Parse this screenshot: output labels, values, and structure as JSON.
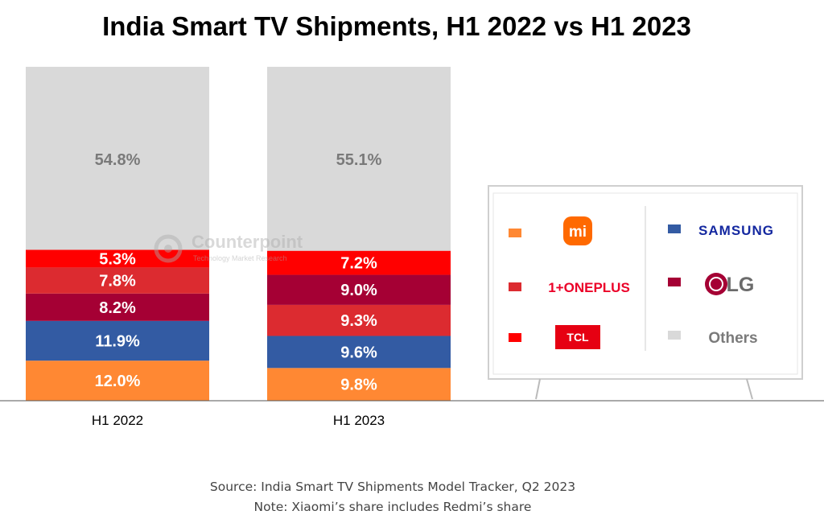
{
  "title": "India Smart TV Shipments, H1 2022 vs H1 2023",
  "source": "Source: India Smart TV Shipments Model Tracker, Q2 2023",
  "note": "Note: Xiaomi’s share includes Redmi’s share",
  "watermark": {
    "name": "Counterpoint",
    "tagline": "Technology Market Research"
  },
  "legend": [
    {
      "name": "Xiaomi",
      "logo_text": "mi",
      "color": "#FF8833"
    },
    {
      "name": "OnePlus",
      "logo_text": "1+ONEPLUS",
      "color": "#DC2B30"
    },
    {
      "name": "TCL",
      "logo_text": "TCL",
      "color": "#FF0000"
    },
    {
      "name": "Samsung",
      "logo_text": "SAMSUNG",
      "color": "#335BA3"
    },
    {
      "name": "LG",
      "logo_text": "LG",
      "color": "#A50034"
    },
    {
      "name": "Others",
      "logo_text": "Others",
      "color": "#D9D9D9"
    }
  ],
  "chart_data": {
    "type": "bar",
    "stacked": true,
    "percent_stacked": true,
    "categories": [
      "H1 2022",
      "H1 2023"
    ],
    "bars": [
      {
        "category": "H1 2022",
        "segments": [
          {
            "brand": "Xiaomi",
            "value": 12.0,
            "label": "12.0%",
            "color": "#FF8833"
          },
          {
            "brand": "Samsung",
            "value": 11.9,
            "label": "11.9%",
            "color": "#335BA3"
          },
          {
            "brand": "LG",
            "value": 8.2,
            "label": "8.2%",
            "color": "#A50034"
          },
          {
            "brand": "OnePlus",
            "value": 7.8,
            "label": "7.8%",
            "color": "#DC2B30"
          },
          {
            "brand": "TCL",
            "value": 5.3,
            "label": "5.3%",
            "color": "#FF0000"
          },
          {
            "brand": "Others",
            "value": 54.8,
            "label": "54.8%",
            "color": "#D9D9D9"
          }
        ]
      },
      {
        "category": "H1 2023",
        "segments": [
          {
            "brand": "Xiaomi",
            "value": 9.8,
            "label": "9.8%",
            "color": "#FF8833"
          },
          {
            "brand": "Samsung",
            "value": 9.6,
            "label": "9.6%",
            "color": "#335BA3"
          },
          {
            "brand": "OnePlus",
            "value": 9.3,
            "label": "9.3%",
            "color": "#DC2B30"
          },
          {
            "brand": "LG",
            "value": 9.0,
            "label": "9.0%",
            "color": "#A50034"
          },
          {
            "brand": "TCL",
            "value": 7.2,
            "label": "7.2%",
            "color": "#FF0000"
          },
          {
            "brand": "Others",
            "value": 55.1,
            "label": "55.1%",
            "color": "#D9D9D9"
          }
        ]
      }
    ],
    "ylim": [
      0,
      100
    ],
    "grid": false,
    "legend_position": "right",
    "title": "India Smart TV Shipments, H1 2022 vs H1 2023",
    "xlabel": "",
    "ylabel": ""
  }
}
